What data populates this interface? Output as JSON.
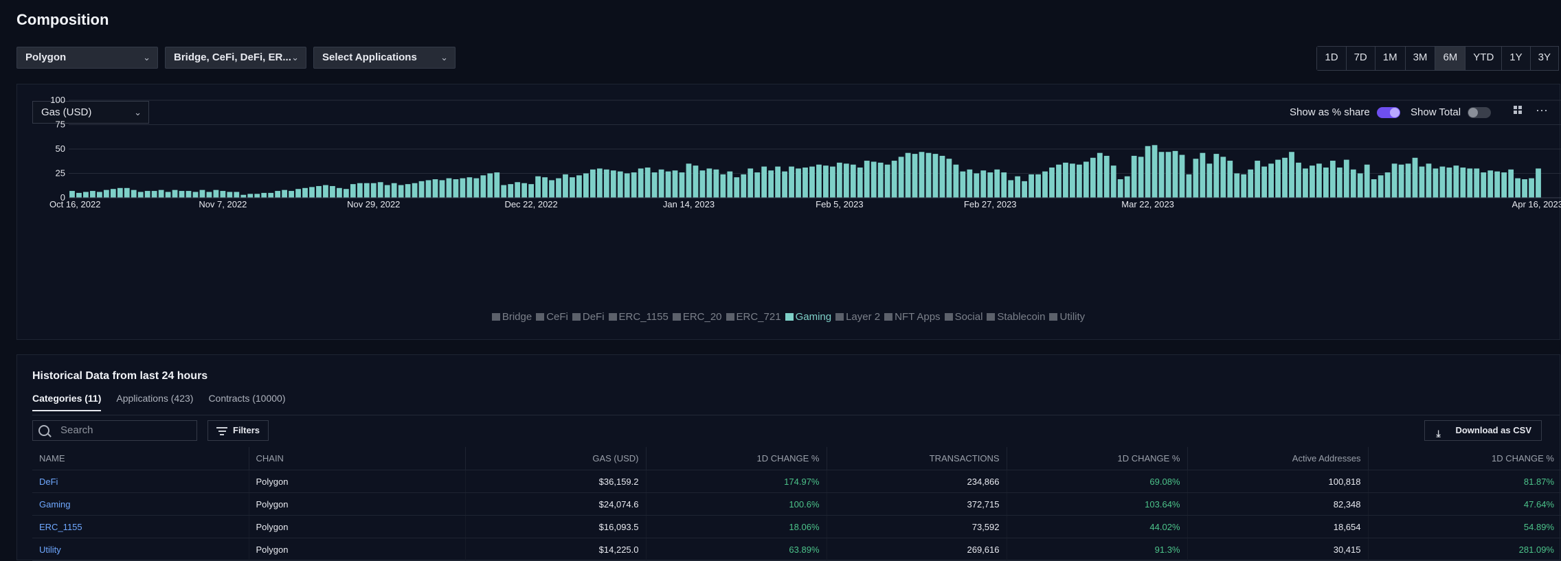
{
  "page": {
    "title": "Composition"
  },
  "filters": {
    "chain": "Polygon",
    "categories": "Bridge, CeFi, DeFi, ER...",
    "applications": "Select Applications"
  },
  "timeframes": [
    "1D",
    "7D",
    "1M",
    "3M",
    "6M",
    "YTD",
    "1Y",
    "3Y"
  ],
  "active_timeframe": "6M",
  "chart_panel": {
    "metric": "Gas (USD)",
    "toggle_share_label": "Show as % share",
    "toggle_share_on": true,
    "toggle_total_label": "Show Total",
    "toggle_total_on": false,
    "icons": [
      "grid-icon",
      "more-icon"
    ]
  },
  "chart_data": {
    "type": "bar",
    "series_active": "Gaming",
    "y_ticks": [
      "0",
      "25",
      "50",
      "75",
      "100"
    ],
    "ylim": [
      0,
      100
    ],
    "x_tick_labels": [
      "Oct 16, 2022",
      "Nov 7, 2022",
      "Nov 29, 2022",
      "Dec 22, 2022",
      "Jan 14, 2023",
      "Feb 5, 2023",
      "Feb 27, 2023",
      "Mar 22, 2023",
      "Apr 16, 2023"
    ],
    "x_tick_index": [
      0,
      22,
      44,
      67,
      90,
      112,
      134,
      157,
      182
    ],
    "values": [
      7,
      5,
      6,
      7,
      6,
      8,
      9,
      10,
      10,
      8,
      6,
      7,
      7,
      8,
      6,
      8,
      7,
      7,
      6,
      8,
      6,
      8,
      7,
      6,
      6,
      3,
      4,
      4,
      5,
      5,
      7,
      8,
      7,
      9,
      10,
      11,
      12,
      13,
      12,
      10,
      9,
      14,
      15,
      15,
      15,
      16,
      13,
      15,
      13,
      14,
      15,
      17,
      18,
      19,
      18,
      20,
      19,
      20,
      21,
      20,
      23,
      25,
      26,
      13,
      14,
      16,
      15,
      14,
      22,
      21,
      18,
      20,
      24,
      21,
      23,
      25,
      29,
      30,
      29,
      28,
      27,
      25,
      26,
      30,
      31,
      26,
      29,
      27,
      28,
      26,
      35,
      33,
      28,
      30,
      29,
      24,
      27,
      21,
      24,
      30,
      26,
      32,
      28,
      32,
      27,
      32,
      30,
      31,
      32,
      34,
      33,
      32,
      36,
      35,
      34,
      31,
      38,
      37,
      36,
      34,
      38,
      42,
      46,
      45,
      47,
      46,
      45,
      43,
      40,
      34,
      27,
      29,
      25,
      28,
      26,
      29,
      26,
      18,
      22,
      17,
      24,
      24,
      27,
      31,
      34,
      36,
      35,
      34,
      37,
      41,
      46,
      43,
      33,
      19,
      22,
      43,
      42,
      53,
      54,
      47,
      47,
      48,
      44,
      24,
      40,
      46,
      35,
      45,
      42,
      38,
      25,
      24,
      29,
      38,
      32,
      35,
      39,
      41,
      47,
      36,
      30,
      33,
      35,
      31,
      38,
      31,
      39,
      29,
      25,
      34,
      19,
      23,
      26,
      35,
      34,
      35,
      41,
      32,
      35,
      30,
      32,
      31,
      33,
      31,
      30,
      30,
      26,
      28,
      27,
      26,
      29,
      20,
      19,
      20,
      30
    ],
    "legend": [
      "Bridge",
      "CeFi",
      "DeFi",
      "ERC_1155",
      "ERC_20",
      "ERC_721",
      "Gaming",
      "Layer 2",
      "NFT Apps",
      "Social",
      "Stablecoin",
      "Utility"
    ],
    "colors": {
      "active": "#7ed0c8",
      "inactive": "#5c616b"
    }
  },
  "historical": {
    "title": "Historical Data from last 24 hours",
    "tabs": [
      "Categories (11)",
      "Applications (423)",
      "Contracts (10000)"
    ],
    "search_placeholder": "Search",
    "filters_label": "Filters",
    "download_label": "Download as CSV",
    "columns": [
      "NAME",
      "CHAIN",
      "GAS (USD)",
      "1D CHANGE %",
      "TRANSACTIONS",
      "1D CHANGE %",
      "Active Addresses",
      "1D CHANGE %"
    ],
    "rows": [
      [
        "DeFi",
        "Polygon",
        "$36,159.2",
        "174.97%",
        "234,866",
        "69.08%",
        "100,818",
        "81.87%"
      ],
      [
        "Gaming",
        "Polygon",
        "$24,074.6",
        "100.6%",
        "372,715",
        "103.64%",
        "82,348",
        "47.64%"
      ],
      [
        "ERC_1155",
        "Polygon",
        "$16,093.5",
        "18.06%",
        "73,592",
        "44.02%",
        "18,654",
        "54.89%"
      ],
      [
        "Utility",
        "Polygon",
        "$14,225.0",
        "63.89%",
        "269,616",
        "91.3%",
        "30,415",
        "281.09%"
      ]
    ]
  }
}
